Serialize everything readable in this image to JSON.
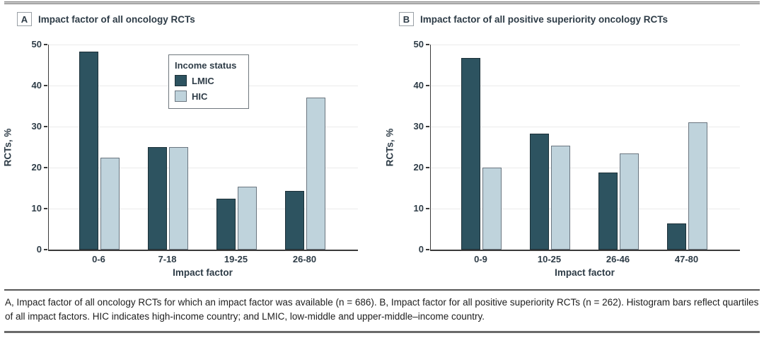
{
  "legend": {
    "title": "Income status",
    "entries": [
      {
        "label": "LMIC",
        "color": "#2d5360",
        "border": "#1c3038"
      },
      {
        "label": "HIC",
        "color": "#bfd3dc",
        "border": "#6b7680"
      }
    ]
  },
  "chart_data": [
    {
      "type": "bar",
      "panel_label": "A",
      "title": "Impact factor of all oncology RCTs",
      "categories": [
        "0-6",
        "7-18",
        "19-25",
        "26-80"
      ],
      "series": [
        {
          "name": "LMIC",
          "color": "#2d5360",
          "border": "#1c3038",
          "values": [
            48.2,
            25.0,
            12.5,
            14.3
          ]
        },
        {
          "name": "HIC",
          "color": "#bfd3dc",
          "border": "#6b7680",
          "values": [
            22.5,
            25.0,
            15.4,
            37.0
          ]
        }
      ],
      "xlabel": "Impact factor",
      "ylabel": "RCTs, %",
      "ylim": [
        0,
        50
      ],
      "yticks": [
        0,
        10,
        20,
        30,
        40,
        50
      ],
      "grid": true,
      "legend_position": "upper middle of panel A"
    },
    {
      "type": "bar",
      "panel_label": "B",
      "title": "Impact factor of all positive superiority oncology RCTs",
      "categories": [
        "0-9",
        "10-25",
        "26-46",
        "47-80"
      ],
      "series": [
        {
          "name": "LMIC",
          "color": "#2d5360",
          "border": "#1c3038",
          "values": [
            46.8,
            28.2,
            18.8,
            6.3
          ]
        },
        {
          "name": "HIC",
          "color": "#bfd3dc",
          "border": "#6b7680",
          "values": [
            20.0,
            25.3,
            23.5,
            31.1
          ]
        }
      ],
      "xlabel": "Impact factor",
      "ylabel": "RCTs, %",
      "ylim": [
        0,
        50
      ],
      "yticks": [
        0,
        10,
        20,
        30,
        40,
        50
      ],
      "grid": true
    }
  ],
  "caption": {
    "text": "A, Impact factor of all oncology RCTs for which an impact factor was available (n = 686). B, Impact factor for all positive superiority RCTs (n = 262). Histogram bars reflect quartiles of all impact factors. HIC indicates high-income country; and LMIC, low-middle and upper-middle–income country."
  }
}
